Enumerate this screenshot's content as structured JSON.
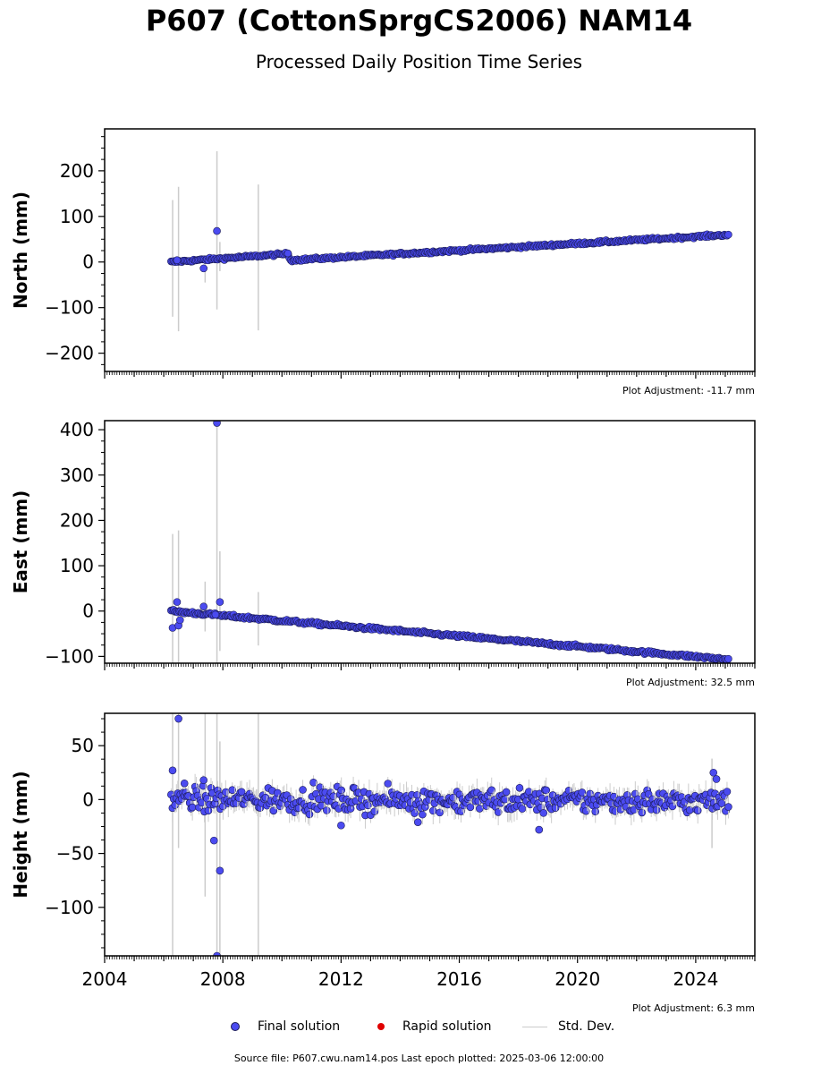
{
  "title": "P607 (CottonSprgCS2006) NAM14",
  "subtitle": "Processed Daily Position Time Series",
  "legend": {
    "final": "Final solution",
    "rapid": "Rapid solution",
    "std": "Std. Dev."
  },
  "colors": {
    "final": "#4b4bf0",
    "rapid": "#e00000",
    "std": "#cccccc",
    "edge": "#1a1a55"
  },
  "source_text": "Source file: P607.cwu.nam14.pos  Last epoch plotted: 2025-03-06 12:00:00",
  "chart_data": [
    {
      "type": "scatter",
      "ylabel": "North (mm)",
      "adjustment": "Plot Adjustment: -11.7 mm",
      "xlim": [
        2004,
        2026
      ],
      "ylim": [
        -240,
        292
      ],
      "yticks": [
        -200,
        -100,
        0,
        100,
        200
      ],
      "trend": [
        [
          2006.25,
          0
        ],
        [
          2010.2,
          18
        ],
        [
          2010.3,
          4
        ],
        [
          2025.15,
          60
        ]
      ],
      "outliers": [
        [
          2007.35,
          -14
        ],
        [
          2007.8,
          68
        ],
        [
          2006.45,
          4
        ],
        [
          2010.2,
          19
        ]
      ],
      "errorbars": [
        [
          2006.3,
          -120,
          136
        ],
        [
          2006.5,
          -152,
          165
        ],
        [
          2007.4,
          -45,
          15
        ],
        [
          2007.8,
          -104,
          243
        ],
        [
          2007.9,
          -20,
          44
        ],
        [
          2009.2,
          -150,
          170
        ]
      ],
      "noise": 2
    },
    {
      "type": "scatter",
      "ylabel": "East (mm)",
      "adjustment": "Plot Adjustment: 32.5 mm",
      "xlim": [
        2004,
        2026
      ],
      "ylim": [
        -115,
        420
      ],
      "yticks": [
        -100,
        0,
        100,
        200,
        300,
        400
      ],
      "trend": [
        [
          2006.25,
          0
        ],
        [
          2025.15,
          -107
        ]
      ],
      "outliers": [
        [
          2006.3,
          -37
        ],
        [
          2006.45,
          20
        ],
        [
          2006.5,
          -32
        ],
        [
          2006.55,
          -20
        ],
        [
          2007.35,
          10
        ],
        [
          2007.75,
          -8
        ],
        [
          2007.8,
          415
        ],
        [
          2007.9,
          20
        ]
      ],
      "errorbars": [
        [
          2006.3,
          -115,
          170
        ],
        [
          2006.5,
          -115,
          178
        ],
        [
          2007.4,
          -45,
          65
        ],
        [
          2007.8,
          -115,
          420
        ],
        [
          2007.9,
          -88,
          132
        ],
        [
          2009.2,
          -76,
          42
        ]
      ],
      "noise": 2.5
    },
    {
      "type": "scatter",
      "ylabel": "Height (mm)",
      "adjustment": "Plot Adjustment: 6.3 mm",
      "xlim": [
        2004,
        2026
      ],
      "ylim": [
        -145,
        80
      ],
      "yticks": [
        -100,
        -50,
        0,
        50
      ],
      "xticks": [
        2004,
        2008,
        2012,
        2016,
        2020,
        2024
      ],
      "trend": [
        [
          2006.25,
          0
        ],
        [
          2025.15,
          -2
        ]
      ],
      "outliers": [
        [
          2006.3,
          27
        ],
        [
          2006.5,
          75
        ],
        [
          2006.7,
          15
        ],
        [
          2007.35,
          18
        ],
        [
          2007.7,
          -38
        ],
        [
          2007.8,
          -145
        ],
        [
          2007.9,
          -66
        ],
        [
          2012.0,
          -24
        ],
        [
          2014.6,
          -21
        ],
        [
          2018.7,
          -28
        ],
        [
          2024.6,
          25
        ],
        [
          2024.7,
          19
        ]
      ],
      "errorbars": [
        [
          2006.3,
          -145,
          80
        ],
        [
          2006.5,
          -45,
          80
        ],
        [
          2007.4,
          -90,
          80
        ],
        [
          2007.8,
          -145,
          80
        ],
        [
          2007.9,
          -145,
          54
        ],
        [
          2009.2,
          -145,
          80
        ],
        [
          2024.55,
          -45,
          38
        ]
      ],
      "noise": 8
    }
  ]
}
